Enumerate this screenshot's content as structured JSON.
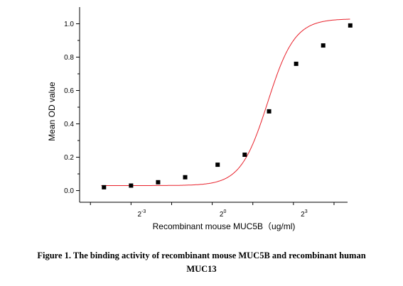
{
  "chart_data": {
    "type": "scatter",
    "xlabel": "Recombinant mouse MUC5B（ug/ml)",
    "ylabel": "Mean OD value",
    "x_scale": "log2",
    "xlim": [
      -5.4,
      4.5
    ],
    "ylim": [
      -0.07,
      1.1
    ],
    "x_ticks": [
      {
        "base": "2",
        "exp": "-3",
        "value": -3
      },
      {
        "base": "2",
        "exp": "0",
        "value": 0
      },
      {
        "base": "2",
        "exp": "3",
        "value": 3
      }
    ],
    "y_ticks": [
      "0.0",
      "0.2",
      "0.4",
      "0.6",
      "0.8",
      "1.0"
    ],
    "y_tick_values": [
      0,
      0.2,
      0.4,
      0.6,
      0.8,
      1.0
    ],
    "series": [
      {
        "marker": "square",
        "color": "#000000",
        "x_log2": [
          -4.5,
          -3.5,
          -2.5,
          -1.5,
          -0.3,
          0.7,
          1.6,
          2.6,
          3.6,
          4.6
        ],
        "values": [
          0.02,
          0.03,
          0.05,
          0.08,
          0.155,
          0.215,
          0.475,
          0.76,
          0.87,
          0.99
        ]
      },
      {
        "type": "fit",
        "color": "#e8202a",
        "curve": "4PL",
        "bottom": 0.03,
        "top": 1.03,
        "ec50_log2": 1.55,
        "slope": 0.5
      }
    ]
  },
  "caption": {
    "line1": "Figure 1. The binding activity of recombinant mouse MUC5B and recombinant human",
    "line2": "MUC13"
  }
}
